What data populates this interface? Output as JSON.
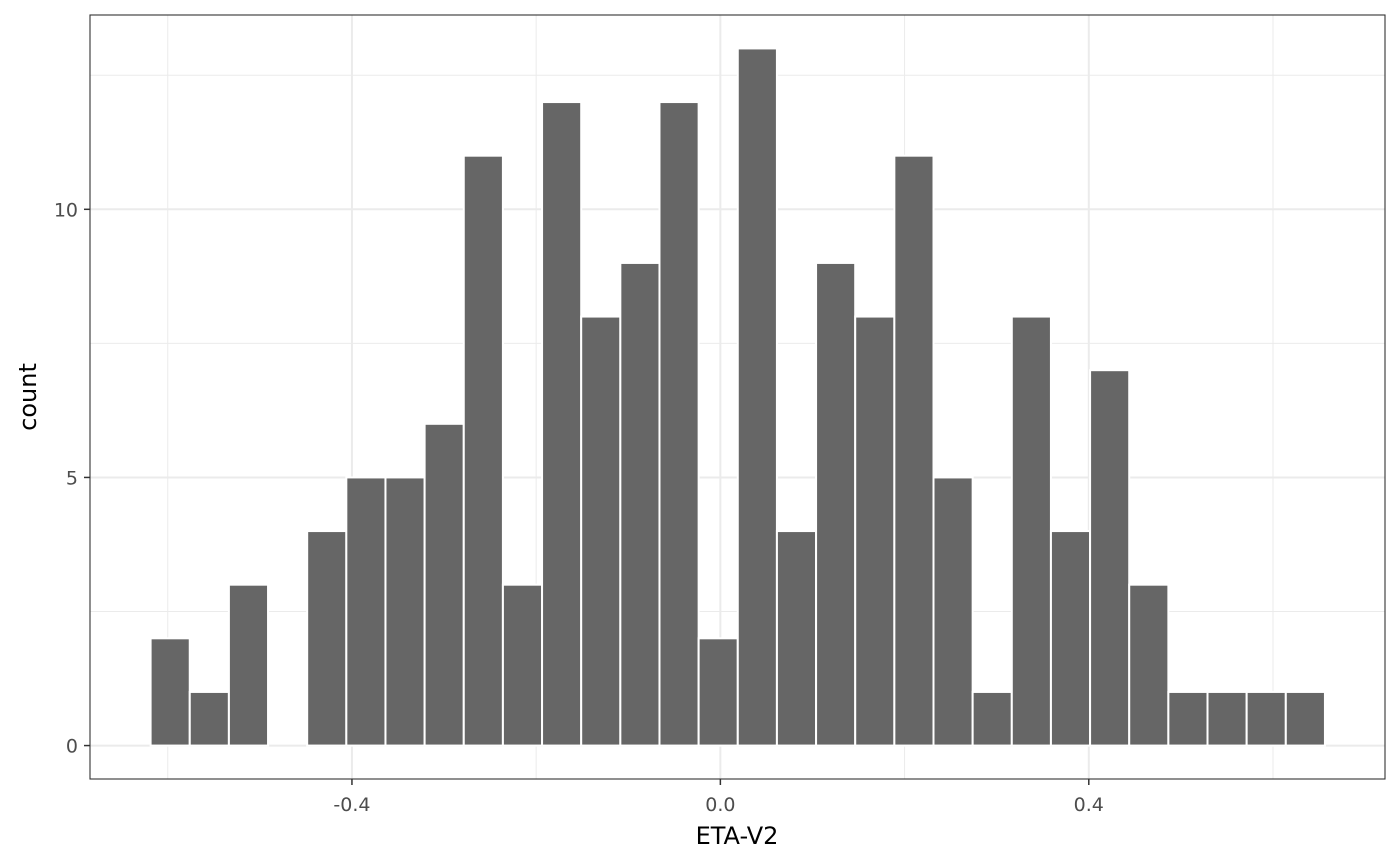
{
  "chart_data": {
    "type": "bar",
    "subtype": "histogram",
    "title": "",
    "xlabel": "ETA-V2",
    "ylabel": "count",
    "xlim": [
      -0.6844,
      0.7216
    ],
    "ylim": [
      -0.6235,
      13.6235
    ],
    "x_ticks": [
      -0.4,
      0.0,
      0.4
    ],
    "x_tick_labels": [
      "-0.4",
      "0.0",
      "0.4"
    ],
    "x_minor_ticks": [
      -0.6,
      -0.2,
      0.2,
      0.6
    ],
    "y_ticks": [
      0,
      5,
      10
    ],
    "y_tick_labels": [
      "0",
      "5",
      "10"
    ],
    "y_minor_ticks": [
      2.5,
      7.5,
      12.5
    ],
    "bin_width": 0.0425,
    "bins": [
      {
        "x0": -0.6186,
        "x1": -0.5761,
        "count": 2
      },
      {
        "x0": -0.5761,
        "x1": -0.5336,
        "count": 1
      },
      {
        "x0": -0.5336,
        "x1": -0.4911,
        "count": 3
      },
      {
        "x0": -0.4911,
        "x1": -0.4486,
        "count": 0
      },
      {
        "x0": -0.4486,
        "x1": -0.4061,
        "count": 4
      },
      {
        "x0": -0.4061,
        "x1": -0.3636,
        "count": 5
      },
      {
        "x0": -0.3636,
        "x1": -0.3211,
        "count": 5
      },
      {
        "x0": -0.3211,
        "x1": -0.2786,
        "count": 6
      },
      {
        "x0": -0.2786,
        "x1": -0.2361,
        "count": 11
      },
      {
        "x0": -0.2361,
        "x1": -0.1936,
        "count": 3
      },
      {
        "x0": -0.1936,
        "x1": -0.1511,
        "count": 12
      },
      {
        "x0": -0.1511,
        "x1": -0.1086,
        "count": 8
      },
      {
        "x0": -0.1086,
        "x1": -0.0661,
        "count": 9
      },
      {
        "x0": -0.0661,
        "x1": -0.0236,
        "count": 12
      },
      {
        "x0": -0.0236,
        "x1": 0.0189,
        "count": 2
      },
      {
        "x0": 0.0189,
        "x1": 0.0614,
        "count": 13
      },
      {
        "x0": 0.0614,
        "x1": 0.1039,
        "count": 4
      },
      {
        "x0": 0.1039,
        "x1": 0.1464,
        "count": 9
      },
      {
        "x0": 0.1464,
        "x1": 0.1889,
        "count": 8
      },
      {
        "x0": 0.1889,
        "x1": 0.2314,
        "count": 11
      },
      {
        "x0": 0.2314,
        "x1": 0.2739,
        "count": 5
      },
      {
        "x0": 0.2739,
        "x1": 0.3164,
        "count": 1
      },
      {
        "x0": 0.3164,
        "x1": 0.3589,
        "count": 8
      },
      {
        "x0": 0.3589,
        "x1": 0.4014,
        "count": 4
      },
      {
        "x0": 0.4014,
        "x1": 0.4439,
        "count": 7
      },
      {
        "x0": 0.4439,
        "x1": 0.4864,
        "count": 3
      },
      {
        "x0": 0.4864,
        "x1": 0.5289,
        "count": 1
      },
      {
        "x0": 0.5289,
        "x1": 0.5714,
        "count": 1
      },
      {
        "x0": 0.5714,
        "x1": 0.6139,
        "count": 1
      },
      {
        "x0": 0.6139,
        "x1": 0.6564,
        "count": 1
      }
    ],
    "bar_fill": "#666666",
    "bar_outline": "#ffffff",
    "grid": true,
    "grid_color": "#ebebeb",
    "panel_border_color": "#333333",
    "legend": "none"
  }
}
